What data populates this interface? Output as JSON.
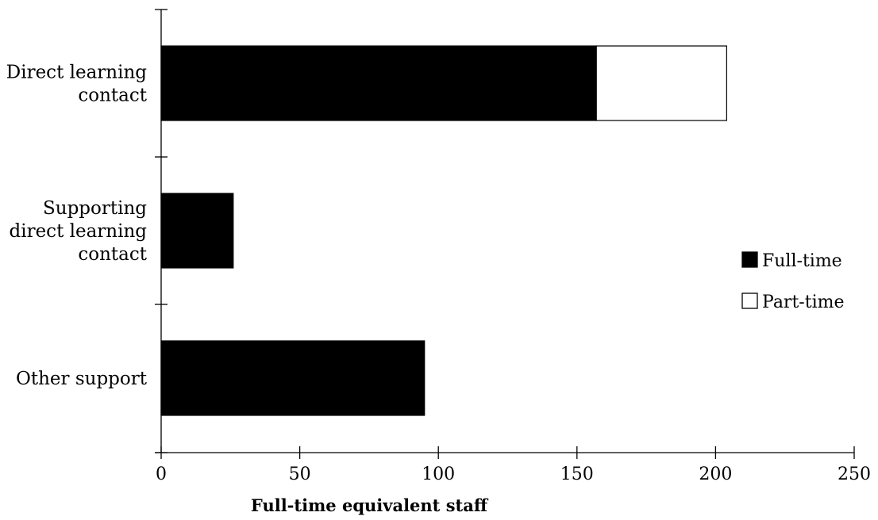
{
  "chart_data": {
    "type": "bar",
    "orientation": "horizontal",
    "stacked": true,
    "categories": [
      [
        "Direct learning",
        "contact"
      ],
      [
        "Supporting",
        "direct learning",
        "contact"
      ],
      [
        "Other support"
      ]
    ],
    "series": [
      {
        "name": "Full-time",
        "values": [
          157,
          26,
          95
        ],
        "color": "#000000"
      },
      {
        "name": "Part-time",
        "values": [
          47,
          0,
          0
        ],
        "color": "#ffffff"
      }
    ],
    "xlabel": "Full-time equivalent staff",
    "ylabel": "",
    "xlim": [
      0,
      250
    ],
    "xticks": [
      0,
      50,
      100,
      150,
      200,
      250
    ],
    "grid": false,
    "legend_position": "right"
  }
}
